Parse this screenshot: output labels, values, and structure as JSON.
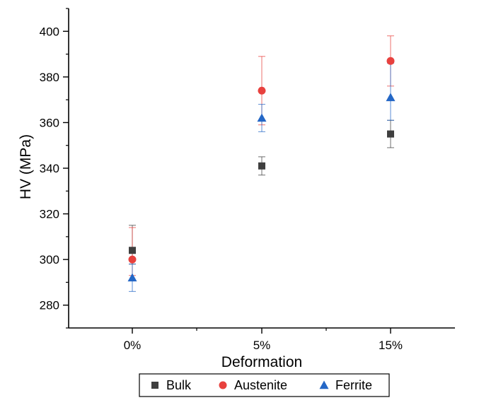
{
  "chart_data": {
    "type": "scatter",
    "title": "",
    "xlabel": "Deformation",
    "ylabel": "HV (MPa)",
    "categories": [
      "0%",
      "5%",
      "15%"
    ],
    "ylim": [
      270,
      410
    ],
    "yticks": [
      280,
      300,
      320,
      340,
      360,
      380,
      400
    ],
    "grid": false,
    "legend_position": "bottom",
    "series": [
      {
        "name": "Bulk",
        "marker": "square",
        "color": "#3f3f3f",
        "values": [
          304,
          341,
          355
        ],
        "error_low": [
          298,
          337,
          349
        ],
        "error_high": [
          315,
          345,
          361
        ]
      },
      {
        "name": "Austenite",
        "marker": "circle",
        "color": "#e8413e",
        "values": [
          300,
          374,
          387
        ],
        "error_low": [
          293,
          359,
          376
        ],
        "error_high": [
          314,
          389,
          398
        ]
      },
      {
        "name": "Ferrite",
        "marker": "triangle",
        "color": "#2467c6",
        "values": [
          292,
          362,
          371
        ],
        "error_low": [
          286,
          356,
          361
        ],
        "error_high": [
          298,
          368,
          386
        ]
      }
    ]
  }
}
